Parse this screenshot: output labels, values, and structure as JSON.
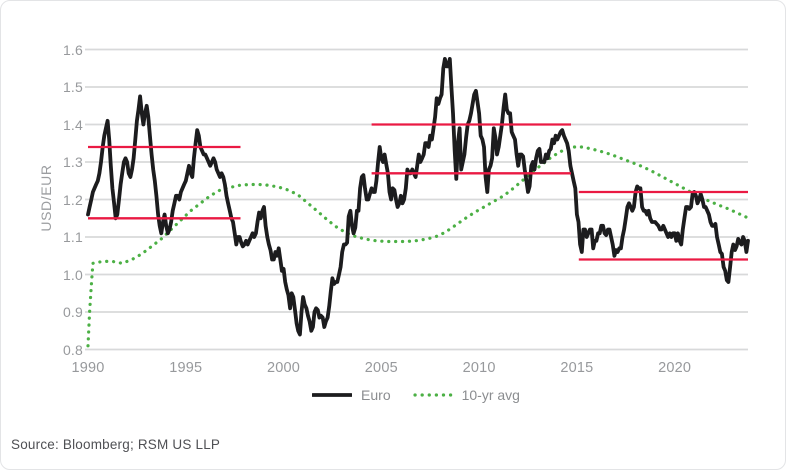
{
  "source_note": "Source: Bloomberg; RSM US LLP",
  "colors": {
    "euro_line": "#1c1c1e",
    "avg_line": "#4cb045",
    "reference_line": "#ea1a43",
    "gridline": "#d8d9da",
    "tick_text": "#97999c",
    "source_text": "#4f5054"
  },
  "chart_data": {
    "type": "line",
    "title": "",
    "xlabel": "",
    "ylabel": "USD/EUR",
    "ylim": [
      0.8,
      1.6
    ],
    "xlim": [
      1990,
      2023.75
    ],
    "grid": "horizontal",
    "legend_position": "bottom-center",
    "y_ticks": [
      1.6,
      1.5,
      1.4,
      1.3,
      1.2,
      1.1,
      1.0,
      0.9,
      0.8
    ],
    "y_tick_labels": [
      "1.6",
      "1.5",
      "1.4",
      "1.3",
      "1.2",
      "1.1",
      "1.0",
      "0.9",
      "0.8"
    ],
    "x_ticks": [
      1990,
      1995,
      2000,
      2005,
      2010,
      2015,
      2020
    ],
    "x_tick_labels": [
      "1990",
      "1995",
      "2000",
      "2005",
      "2010",
      "2015",
      "2020"
    ],
    "legend": [
      {
        "label": "Euro",
        "style": "solid",
        "color": "#1c1c1e"
      },
      {
        "label": "10-yr avg",
        "style": "dotted",
        "color": "#4cb045"
      }
    ],
    "reference_lines": [
      {
        "value": 1.34,
        "from": 1990.0,
        "to": 1997.8,
        "color": "#ea1a43"
      },
      {
        "value": 1.15,
        "from": 1990.0,
        "to": 1997.8,
        "color": "#ea1a43"
      },
      {
        "value": 1.4,
        "from": 2004.5,
        "to": 2014.7,
        "color": "#ea1a43"
      },
      {
        "value": 1.27,
        "from": 2004.5,
        "to": 2014.7,
        "color": "#ea1a43"
      },
      {
        "value": 1.22,
        "from": 2015.1,
        "to": 2023.75,
        "color": "#ea1a43"
      },
      {
        "value": 1.04,
        "from": 2015.1,
        "to": 2023.75,
        "color": "#ea1a43"
      }
    ],
    "series": [
      {
        "name": "Euro",
        "style": "solid",
        "color": "#1c1c1e",
        "start_year": 1990.0,
        "frequency": "monthly",
        "values": [
          1.16,
          1.18,
          1.2,
          1.22,
          1.23,
          1.24,
          1.25,
          1.27,
          1.3,
          1.34,
          1.37,
          1.39,
          1.41,
          1.36,
          1.29,
          1.23,
          1.19,
          1.15,
          1.16,
          1.2,
          1.24,
          1.27,
          1.3,
          1.31,
          1.3,
          1.27,
          1.26,
          1.28,
          1.31,
          1.36,
          1.41,
          1.44,
          1.475,
          1.43,
          1.4,
          1.43,
          1.45,
          1.42,
          1.37,
          1.32,
          1.28,
          1.25,
          1.21,
          1.16,
          1.13,
          1.11,
          1.14,
          1.16,
          1.13,
          1.11,
          1.12,
          1.14,
          1.17,
          1.19,
          1.21,
          1.21,
          1.2,
          1.22,
          1.23,
          1.24,
          1.25,
          1.27,
          1.29,
          1.27,
          1.26,
          1.31,
          1.35,
          1.385,
          1.37,
          1.34,
          1.33,
          1.32,
          1.32,
          1.31,
          1.3,
          1.29,
          1.3,
          1.31,
          1.3,
          1.28,
          1.27,
          1.26,
          1.27,
          1.26,
          1.24,
          1.21,
          1.19,
          1.17,
          1.15,
          1.14,
          1.11,
          1.08,
          1.1,
          1.1,
          1.085,
          1.075,
          1.08,
          1.09,
          1.08,
          1.09,
          1.1,
          1.11,
          1.1,
          1.11,
          1.14,
          1.165,
          1.15,
          1.17,
          1.18,
          1.13,
          1.1,
          1.08,
          1.065,
          1.04,
          1.04,
          1.06,
          1.05,
          1.07,
          1.04,
          1.01,
          1.015,
          0.98,
          0.96,
          0.945,
          0.91,
          0.95,
          0.94,
          0.905,
          0.87,
          0.85,
          0.84,
          0.9,
          0.94,
          0.92,
          0.91,
          0.89,
          0.875,
          0.85,
          0.86,
          0.9,
          0.91,
          0.905,
          0.885,
          0.89,
          0.885,
          0.86,
          0.875,
          0.885,
          0.915,
          0.955,
          0.99,
          0.975,
          0.98,
          0.98,
          1.0,
          1.02,
          1.06,
          1.08,
          1.08,
          1.085,
          1.155,
          1.17,
          1.13,
          1.11,
          1.125,
          1.17,
          1.17,
          1.23,
          1.26,
          1.265,
          1.23,
          1.2,
          1.2,
          1.215,
          1.23,
          1.22,
          1.22,
          1.25,
          1.3,
          1.34,
          1.31,
          1.3,
          1.32,
          1.295,
          1.27,
          1.22,
          1.2,
          1.23,
          1.225,
          1.2,
          1.18,
          1.19,
          1.21,
          1.19,
          1.2,
          1.23,
          1.28,
          1.27,
          1.27,
          1.28,
          1.27,
          1.26,
          1.29,
          1.32,
          1.3,
          1.31,
          1.32,
          1.35,
          1.35,
          1.34,
          1.37,
          1.36,
          1.39,
          1.42,
          1.47,
          1.455,
          1.47,
          1.48,
          1.55,
          1.575,
          1.555,
          1.555,
          1.575,
          1.5,
          1.43,
          1.33,
          1.255,
          1.35,
          1.39,
          1.28,
          1.3,
          1.32,
          1.365,
          1.4,
          1.41,
          1.43,
          1.455,
          1.48,
          1.49,
          1.46,
          1.43,
          1.37,
          1.36,
          1.34,
          1.26,
          1.22,
          1.28,
          1.29,
          1.31,
          1.39,
          1.365,
          1.32,
          1.34,
          1.37,
          1.4,
          1.445,
          1.48,
          1.44,
          1.43,
          1.43,
          1.38,
          1.37,
          1.36,
          1.32,
          1.29,
          1.32,
          1.32,
          1.315,
          1.28,
          1.25,
          1.22,
          1.235,
          1.29,
          1.3,
          1.28,
          1.31,
          1.33,
          1.335,
          1.3,
          1.3,
          1.3,
          1.32,
          1.31,
          1.33,
          1.335,
          1.36,
          1.35,
          1.37,
          1.36,
          1.37,
          1.38,
          1.385,
          1.37,
          1.36,
          1.35,
          1.33,
          1.29,
          1.27,
          1.25,
          1.23,
          1.16,
          1.14,
          1.08,
          1.06,
          1.12,
          1.12,
          1.1,
          1.11,
          1.12,
          1.12,
          1.07,
          1.09,
          1.09,
          1.11,
          1.11,
          1.13,
          1.13,
          1.11,
          1.105,
          1.12,
          1.12,
          1.1,
          1.08,
          1.05,
          1.065,
          1.06,
          1.07,
          1.07,
          1.1,
          1.12,
          1.15,
          1.18,
          1.19,
          1.18,
          1.17,
          1.18,
          1.22,
          1.235,
          1.23,
          1.23,
          1.18,
          1.17,
          1.17,
          1.16,
          1.17,
          1.15,
          1.14,
          1.14,
          1.14,
          1.135,
          1.13,
          1.12,
          1.12,
          1.13,
          1.12,
          1.11,
          1.1,
          1.11,
          1.1,
          1.11,
          1.11,
          1.09,
          1.11,
          1.09,
          1.08,
          1.12,
          1.15,
          1.18,
          1.18,
          1.175,
          1.18,
          1.215,
          1.22,
          1.21,
          1.19,
          1.2,
          1.215,
          1.2,
          1.18,
          1.18,
          1.17,
          1.16,
          1.14,
          1.13,
          1.13,
          1.135,
          1.1,
          1.08,
          1.06,
          1.055,
          1.02,
          1.01,
          0.985,
          0.98,
          1.02,
          1.06,
          1.08,
          1.065,
          1.075,
          1.095,
          1.085,
          1.08,
          1.1,
          1.09,
          1.06,
          1.09
        ]
      },
      {
        "name": "10-yr avg",
        "style": "dotted",
        "color": "#4cb045",
        "points": [
          [
            1990.0,
            0.81
          ],
          [
            1990.08,
            0.9
          ],
          [
            1990.17,
            0.97
          ],
          [
            1990.25,
            1.03
          ],
          [
            1990.75,
            1.035
          ],
          [
            1991.25,
            1.035
          ],
          [
            1991.75,
            1.03
          ],
          [
            1992.25,
            1.04
          ],
          [
            1992.75,
            1.055
          ],
          [
            1993.25,
            1.075
          ],
          [
            1993.75,
            1.095
          ],
          [
            1994.25,
            1.12
          ],
          [
            1994.75,
            1.145
          ],
          [
            1995.25,
            1.17
          ],
          [
            1995.75,
            1.19
          ],
          [
            1996.25,
            1.21
          ],
          [
            1996.75,
            1.225
          ],
          [
            1997.25,
            1.232
          ],
          [
            1997.75,
            1.238
          ],
          [
            1998.25,
            1.24
          ],
          [
            1998.75,
            1.24
          ],
          [
            1999.25,
            1.238
          ],
          [
            1999.75,
            1.233
          ],
          [
            2000.25,
            1.225
          ],
          [
            2000.75,
            1.212
          ],
          [
            2001.25,
            1.19
          ],
          [
            2001.75,
            1.168
          ],
          [
            2002.25,
            1.145
          ],
          [
            2002.75,
            1.125
          ],
          [
            2003.25,
            1.11
          ],
          [
            2003.75,
            1.1
          ],
          [
            2004.25,
            1.094
          ],
          [
            2004.75,
            1.09
          ],
          [
            2005.25,
            1.088
          ],
          [
            2005.75,
            1.088
          ],
          [
            2006.25,
            1.088
          ],
          [
            2006.75,
            1.09
          ],
          [
            2007.25,
            1.094
          ],
          [
            2007.75,
            1.1
          ],
          [
            2008.25,
            1.112
          ],
          [
            2008.75,
            1.13
          ],
          [
            2009.25,
            1.148
          ],
          [
            2009.75,
            1.165
          ],
          [
            2010.25,
            1.18
          ],
          [
            2010.75,
            1.195
          ],
          [
            2011.25,
            1.21
          ],
          [
            2011.75,
            1.23
          ],
          [
            2012.25,
            1.252
          ],
          [
            2012.75,
            1.275
          ],
          [
            2013.25,
            1.295
          ],
          [
            2013.75,
            1.315
          ],
          [
            2014.25,
            1.33
          ],
          [
            2014.75,
            1.34
          ],
          [
            2015.25,
            1.34
          ],
          [
            2015.75,
            1.335
          ],
          [
            2016.25,
            1.328
          ],
          [
            2016.75,
            1.32
          ],
          [
            2017.25,
            1.31
          ],
          [
            2017.75,
            1.3
          ],
          [
            2018.25,
            1.29
          ],
          [
            2018.75,
            1.278
          ],
          [
            2019.25,
            1.264
          ],
          [
            2019.75,
            1.25
          ],
          [
            2020.25,
            1.236
          ],
          [
            2020.75,
            1.222
          ],
          [
            2021.25,
            1.208
          ],
          [
            2021.75,
            1.196
          ],
          [
            2022.25,
            1.185
          ],
          [
            2022.75,
            1.175
          ],
          [
            2023.25,
            1.163
          ],
          [
            2023.7,
            1.152
          ]
        ]
      }
    ]
  }
}
